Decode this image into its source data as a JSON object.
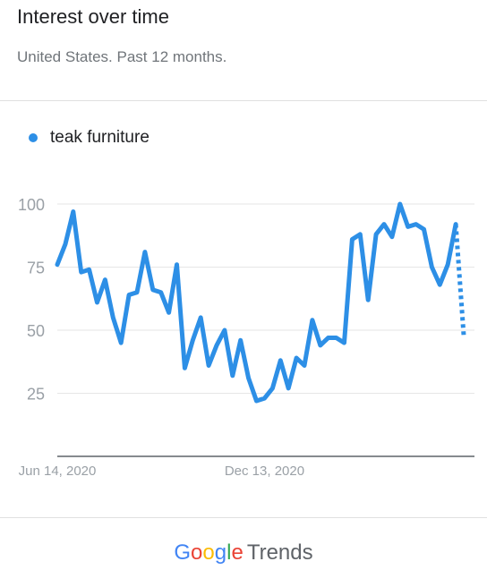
{
  "header": {
    "title": "Interest over time",
    "subtitle": "United States. Past 12 months."
  },
  "footer": {
    "brand_letters": [
      "G",
      "o",
      "o",
      "g",
      "l",
      "e"
    ],
    "brand_colors": [
      "#4285f4",
      "#ea4335",
      "#fbbc05",
      "#4285f4",
      "#34a853",
      "#ea4335"
    ],
    "product": "Trends"
  },
  "colors": {
    "series": "#2d8fe6",
    "grid": "#e6e6e6",
    "axis": "#9aa0a6"
  },
  "chart_data": {
    "type": "line",
    "title": "Interest over time",
    "ylim": [
      0,
      100
    ],
    "yticks": [
      25,
      50,
      75,
      100
    ],
    "xtick_labels": [
      "Jun 14, 2020",
      "Dec 13, 2020"
    ],
    "xtick_indices": [
      0,
      26
    ],
    "series": [
      {
        "name": "teak furniture",
        "values": [
          76,
          84,
          97,
          73,
          74,
          61,
          70,
          55,
          45,
          64,
          65,
          81,
          66,
          65,
          57,
          76,
          35,
          46,
          55,
          36,
          44,
          50,
          32,
          46,
          31,
          22,
          23,
          27,
          38,
          27,
          39,
          36,
          54,
          44,
          47,
          47,
          45,
          86,
          88,
          62,
          88,
          92,
          87,
          100,
          91,
          92,
          90,
          75,
          68,
          76,
          92
        ],
        "partial_last_value": 48
      }
    ]
  }
}
